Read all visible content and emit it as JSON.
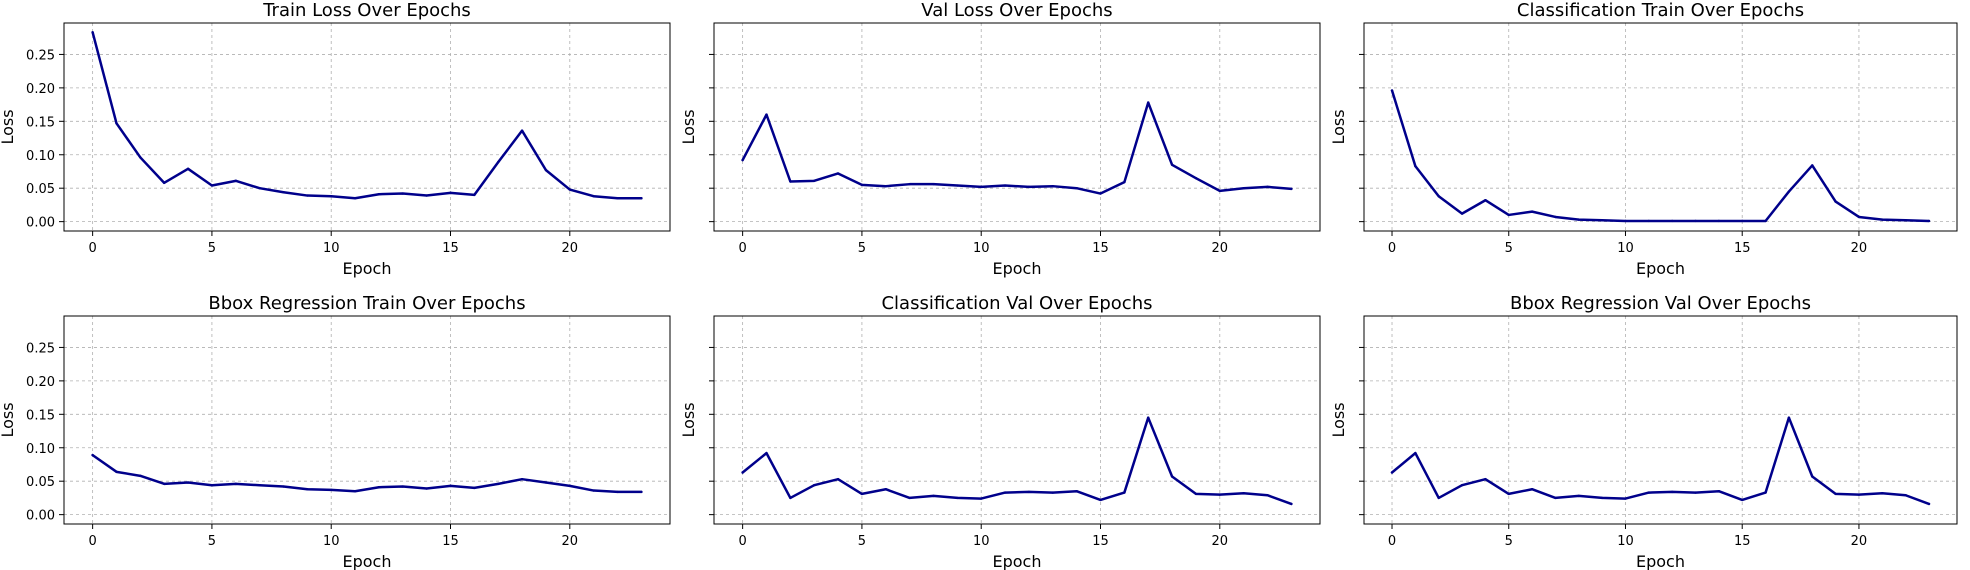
{
  "chart_data": [
    {
      "type": "line",
      "title": "Train Loss Over Epochs",
      "xlabel": "Epoch",
      "ylabel": "Loss",
      "x": [
        0,
        1,
        2,
        3,
        4,
        5,
        6,
        7,
        8,
        9,
        10,
        11,
        12,
        13,
        14,
        15,
        16,
        17,
        18,
        19,
        20,
        21,
        22,
        23
      ],
      "series": [
        {
          "values": [
            0.283,
            0.147,
            0.096,
            0.058,
            0.079,
            0.054,
            0.061,
            0.05,
            0.044,
            0.039,
            0.038,
            0.035,
            0.041,
            0.042,
            0.039,
            0.043,
            0.04,
            0.089,
            0.136,
            0.077,
            0.048,
            0.038,
            0.035,
            0.035
          ]
        }
      ],
      "xlim": [
        -1.2,
        24.2
      ],
      "ylim": [
        -0.014,
        0.297
      ],
      "xticks": [
        0,
        5,
        10,
        15,
        20
      ],
      "yticks": [
        0.0,
        0.05,
        0.1,
        0.15,
        0.2,
        0.25
      ],
      "ytick_labels": [
        "0.00",
        "0.05",
        "0.10",
        "0.15",
        "0.20",
        "0.25"
      ],
      "grid": true,
      "color": "#00008b"
    },
    {
      "type": "line",
      "title": "Val Loss Over Epochs",
      "xlabel": "Epoch",
      "ylabel": "Loss",
      "x": [
        0,
        1,
        2,
        3,
        4,
        5,
        6,
        7,
        8,
        9,
        10,
        11,
        12,
        13,
        14,
        15,
        16,
        17,
        18,
        19,
        20,
        21,
        22,
        23
      ],
      "series": [
        {
          "values": [
            0.092,
            0.16,
            0.06,
            0.061,
            0.072,
            0.055,
            0.053,
            0.056,
            0.056,
            0.054,
            0.052,
            0.054,
            0.052,
            0.053,
            0.05,
            0.042,
            0.059,
            0.178,
            0.085,
            0.065,
            0.046,
            0.05,
            0.052,
            0.049
          ]
        }
      ],
      "xlim": [
        -1.2,
        24.2
      ],
      "ylim": [
        -0.014,
        0.297
      ],
      "xticks": [
        0,
        5,
        10,
        15,
        20
      ],
      "yticks": [
        0.0,
        0.05,
        0.1,
        0.15,
        0.2,
        0.25
      ],
      "ytick_labels": [
        "",
        "",
        "",
        "",
        "",
        ""
      ],
      "grid": true,
      "color": "#00008b"
    },
    {
      "type": "line",
      "title": "Classification Train Over Epochs",
      "xlabel": "Epoch",
      "ylabel": "Loss",
      "x": [
        0,
        1,
        2,
        3,
        4,
        5,
        6,
        7,
        8,
        9,
        10,
        11,
        12,
        13,
        14,
        15,
        16,
        17,
        18,
        19,
        20,
        21,
        22,
        23
      ],
      "series": [
        {
          "values": [
            0.196,
            0.083,
            0.038,
            0.012,
            0.032,
            0.01,
            0.015,
            0.007,
            0.003,
            0.002,
            0.001,
            0.001,
            0.001,
            0.001,
            0.001,
            0.001,
            0.001,
            0.045,
            0.084,
            0.03,
            0.007,
            0.003,
            0.002,
            0.001
          ]
        }
      ],
      "xlim": [
        -1.2,
        24.2
      ],
      "ylim": [
        -0.014,
        0.297
      ],
      "xticks": [
        0,
        5,
        10,
        15,
        20
      ],
      "yticks": [
        0.0,
        0.05,
        0.1,
        0.15,
        0.2,
        0.25
      ],
      "ytick_labels": [
        "",
        "",
        "",
        "",
        "",
        ""
      ],
      "grid": true,
      "color": "#00008b"
    },
    {
      "type": "line",
      "title": "Bbox Regression Train Over Epochs",
      "xlabel": "Epoch",
      "ylabel": "Loss",
      "x": [
        0,
        1,
        2,
        3,
        4,
        5,
        6,
        7,
        8,
        9,
        10,
        11,
        12,
        13,
        14,
        15,
        16,
        17,
        18,
        19,
        20,
        21,
        22,
        23
      ],
      "series": [
        {
          "values": [
            0.089,
            0.064,
            0.058,
            0.046,
            0.048,
            0.044,
            0.046,
            0.044,
            0.042,
            0.038,
            0.037,
            0.035,
            0.041,
            0.042,
            0.039,
            0.043,
            0.04,
            0.046,
            0.053,
            0.048,
            0.043,
            0.036,
            0.034,
            0.034
          ]
        }
      ],
      "xlim": [
        -1.2,
        24.2
      ],
      "ylim": [
        -0.014,
        0.297
      ],
      "xticks": [
        0,
        5,
        10,
        15,
        20
      ],
      "yticks": [
        0.0,
        0.05,
        0.1,
        0.15,
        0.2,
        0.25
      ],
      "ytick_labels": [
        "0.00",
        "0.05",
        "0.10",
        "0.15",
        "0.20",
        "0.25"
      ],
      "grid": true,
      "color": "#00008b"
    },
    {
      "type": "line",
      "title": "Classification Val Over Epochs",
      "xlabel": "Epoch",
      "ylabel": "Loss",
      "x": [
        0,
        1,
        2,
        3,
        4,
        5,
        6,
        7,
        8,
        9,
        10,
        11,
        12,
        13,
        14,
        15,
        16,
        17,
        18,
        19,
        20,
        21,
        22,
        23
      ],
      "series": [
        {
          "values": [
            0.063,
            0.092,
            0.025,
            0.044,
            0.053,
            0.031,
            0.038,
            0.025,
            0.028,
            0.025,
            0.024,
            0.033,
            0.034,
            0.033,
            0.035,
            0.022,
            0.033,
            0.145,
            0.057,
            0.031,
            0.03,
            0.032,
            0.029,
            0.016
          ]
        }
      ],
      "xlim": [
        -1.2,
        24.2
      ],
      "ylim": [
        -0.014,
        0.297
      ],
      "xticks": [
        0,
        5,
        10,
        15,
        20
      ],
      "yticks": [
        0.0,
        0.05,
        0.1,
        0.15,
        0.2,
        0.25
      ],
      "ytick_labels": [
        "",
        "",
        "",
        "",
        "",
        ""
      ],
      "grid": true,
      "color": "#00008b"
    },
    {
      "type": "line",
      "title": "Bbox Regression Val Over Epochs",
      "xlabel": "Epoch",
      "ylabel": "Loss",
      "x": [
        0,
        1,
        2,
        3,
        4,
        5,
        6,
        7,
        8,
        9,
        10,
        11,
        12,
        13,
        14,
        15,
        16,
        17,
        18,
        19,
        20,
        21,
        22,
        23
      ],
      "series": [
        {
          "values": [
            0.063,
            0.092,
            0.025,
            0.044,
            0.053,
            0.031,
            0.038,
            0.025,
            0.028,
            0.025,
            0.024,
            0.033,
            0.034,
            0.033,
            0.035,
            0.022,
            0.033,
            0.145,
            0.057,
            0.031,
            0.03,
            0.032,
            0.029,
            0.016
          ]
        }
      ],
      "xlim": [
        -1.2,
        24.2
      ],
      "ylim": [
        -0.014,
        0.297
      ],
      "xticks": [
        0,
        5,
        10,
        15,
        20
      ],
      "yticks": [
        0.0,
        0.05,
        0.1,
        0.15,
        0.2,
        0.25
      ],
      "ytick_labels": [
        "",
        "",
        "",
        "",
        "",
        ""
      ],
      "grid": true,
      "color": "#00008b"
    }
  ]
}
